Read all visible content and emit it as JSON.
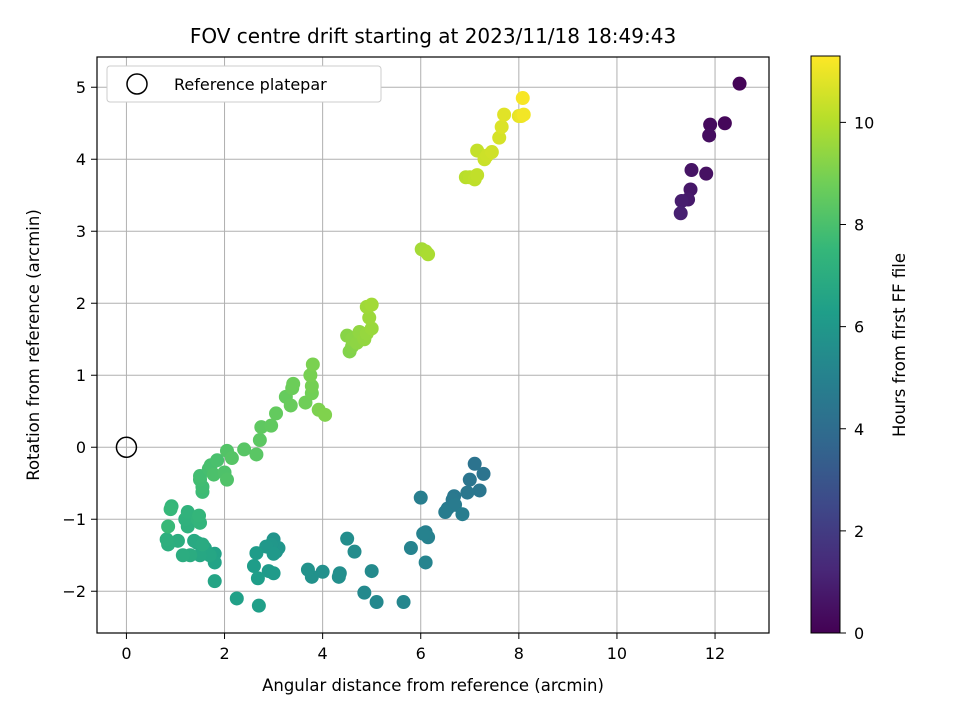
{
  "chart_data": {
    "type": "scatter",
    "title": "FOV centre drift starting at 2023/11/18 18:49:43",
    "xlabel": "Angular distance from reference (arcmin)",
    "ylabel": "Rotation from reference (arcmin)",
    "xlim": [
      -0.6,
      13.1
    ],
    "ylim": [
      -2.58,
      5.42
    ],
    "xticks": [
      0,
      2,
      4,
      6,
      8,
      10,
      12
    ],
    "yticks": [
      -2,
      -1,
      0,
      1,
      2,
      3,
      4,
      5
    ],
    "grid": true,
    "legend": {
      "placement": "upper-left",
      "entries": [
        "Reference platepar"
      ]
    },
    "reference_point": {
      "x": 0,
      "y": 0,
      "label": "Reference platepar"
    },
    "colorbar": {
      "label": "Hours from first FF file",
      "colormap": "viridis",
      "min": 0,
      "max": 11.3,
      "ticks": [
        0,
        2,
        4,
        6,
        8,
        10
      ],
      "colors": [
        "#440154",
        "#482878",
        "#3e4989",
        "#31688e",
        "#26828e",
        "#1f9e89",
        "#35b779",
        "#6ece58",
        "#b5de2b",
        "#fde725"
      ]
    },
    "points": [
      [
        12.5,
        5.05,
        0.1
      ],
      [
        12.2,
        4.5,
        0.2
      ],
      [
        11.9,
        4.48,
        0.3
      ],
      [
        11.88,
        4.33,
        0.4
      ],
      [
        11.82,
        3.8,
        0.5
      ],
      [
        11.52,
        3.85,
        0.6
      ],
      [
        11.5,
        3.58,
        0.7
      ],
      [
        11.45,
        3.44,
        0.8
      ],
      [
        11.32,
        3.42,
        0.9
      ],
      [
        11.3,
        3.25,
        1.0
      ],
      [
        7.1,
        -0.23,
        4.3
      ],
      [
        7.28,
        -0.37,
        4.35
      ],
      [
        7.0,
        -0.45,
        4.4
      ],
      [
        7.2,
        -0.6,
        4.45
      ],
      [
        6.95,
        -0.63,
        4.5
      ],
      [
        6.68,
        -0.68,
        4.55
      ],
      [
        6.65,
        -0.73,
        4.6
      ],
      [
        6.55,
        -0.85,
        4.65
      ],
      [
        6.7,
        -0.8,
        4.7
      ],
      [
        6.5,
        -0.9,
        4.75
      ],
      [
        6.85,
        -0.93,
        4.8
      ],
      [
        6.0,
        -0.7,
        4.85
      ],
      [
        6.1,
        -1.18,
        4.9
      ],
      [
        6.15,
        -1.25,
        4.95
      ],
      [
        6.05,
        -1.2,
        5.0
      ],
      [
        5.8,
        -1.4,
        5.05
      ],
      [
        6.1,
        -1.6,
        5.1
      ],
      [
        5.65,
        -2.15,
        5.2
      ],
      [
        5.1,
        -2.15,
        5.3
      ],
      [
        4.85,
        -2.02,
        5.35
      ],
      [
        5.0,
        -1.72,
        5.4
      ],
      [
        4.65,
        -1.45,
        5.45
      ],
      [
        4.5,
        -1.27,
        5.5
      ],
      [
        4.35,
        -1.75,
        5.55
      ],
      [
        4.33,
        -1.8,
        5.6
      ],
      [
        4.0,
        -1.73,
        5.65
      ],
      [
        3.78,
        -1.8,
        5.7
      ],
      [
        3.7,
        -1.7,
        5.75
      ],
      [
        3.05,
        -1.45,
        5.8
      ],
      [
        3.0,
        -1.28,
        5.85
      ],
      [
        3.1,
        -1.4,
        5.9
      ],
      [
        2.95,
        -1.35,
        5.95
      ],
      [
        2.85,
        -1.38,
        6.0
      ],
      [
        3.0,
        -1.48,
        6.05
      ],
      [
        2.9,
        -1.72,
        6.1
      ],
      [
        3.0,
        -1.75,
        6.15
      ],
      [
        2.65,
        -1.47,
        6.2
      ],
      [
        2.6,
        -1.65,
        6.25
      ],
      [
        2.68,
        -1.82,
        6.3
      ],
      [
        2.7,
        -2.2,
        6.35
      ],
      [
        2.25,
        -2.1,
        6.4
      ],
      [
        1.8,
        -1.48,
        6.5
      ],
      [
        1.8,
        -1.6,
        6.55
      ],
      [
        1.8,
        -1.86,
        6.6
      ],
      [
        1.6,
        -1.4,
        6.65
      ],
      [
        1.7,
        -1.5,
        6.7
      ],
      [
        1.5,
        -1.5,
        6.75
      ],
      [
        1.45,
        -1.33,
        6.8
      ],
      [
        1.38,
        -1.3,
        6.85
      ],
      [
        1.55,
        -1.35,
        6.9
      ],
      [
        1.3,
        -1.5,
        6.95
      ],
      [
        1.15,
        -1.5,
        7.0
      ],
      [
        1.05,
        -1.3,
        7.05
      ],
      [
        0.85,
        -1.35,
        7.1
      ],
      [
        0.82,
        -1.28,
        7.15
      ],
      [
        1.25,
        -1.1,
        7.2
      ],
      [
        1.2,
        -1.0,
        7.25
      ],
      [
        1.25,
        -0.9,
        7.3
      ],
      [
        1.45,
        -1.0,
        7.35
      ],
      [
        1.5,
        -1.05,
        7.4
      ],
      [
        1.48,
        -0.95,
        7.45
      ],
      [
        0.92,
        -0.82,
        7.5
      ],
      [
        0.9,
        -0.86,
        7.55
      ],
      [
        0.85,
        -1.1,
        7.6
      ],
      [
        1.55,
        -0.62,
        7.7
      ],
      [
        1.55,
        -0.55,
        7.75
      ],
      [
        1.5,
        -0.45,
        7.8
      ],
      [
        1.5,
        -0.4,
        7.85
      ],
      [
        1.68,
        -0.3,
        7.9
      ],
      [
        1.72,
        -0.25,
        7.95
      ],
      [
        1.85,
        -0.18,
        8.0
      ],
      [
        1.78,
        -0.38,
        8.05
      ],
      [
        2.0,
        -0.35,
        8.1
      ],
      [
        2.05,
        -0.45,
        8.15
      ],
      [
        2.05,
        -0.05,
        8.2
      ],
      [
        2.15,
        -0.15,
        8.25
      ],
      [
        2.4,
        -0.03,
        8.3
      ],
      [
        2.65,
        -0.1,
        8.35
      ],
      [
        2.72,
        0.1,
        8.4
      ],
      [
        2.75,
        0.28,
        8.45
      ],
      [
        2.95,
        0.3,
        8.5
      ],
      [
        3.05,
        0.47,
        8.55
      ],
      [
        3.25,
        0.7,
        8.6
      ],
      [
        3.35,
        0.58,
        8.65
      ],
      [
        3.38,
        0.82,
        8.7
      ],
      [
        3.4,
        0.88,
        8.75
      ],
      [
        3.65,
        0.62,
        8.8
      ],
      [
        3.78,
        0.75,
        8.85
      ],
      [
        3.78,
        0.85,
        8.9
      ],
      [
        3.75,
        1.0,
        8.95
      ],
      [
        3.8,
        1.15,
        9.0
      ],
      [
        3.92,
        0.52,
        9.05
      ],
      [
        4.05,
        0.45,
        9.1
      ],
      [
        4.55,
        1.33,
        9.15
      ],
      [
        4.6,
        1.4,
        9.2
      ],
      [
        4.5,
        1.55,
        9.25
      ],
      [
        4.6,
        1.5,
        9.3
      ],
      [
        4.7,
        1.45,
        9.35
      ],
      [
        4.75,
        1.6,
        9.4
      ],
      [
        4.85,
        1.5,
        9.45
      ],
      [
        4.9,
        1.58,
        9.5
      ],
      [
        5.0,
        1.65,
        9.55
      ],
      [
        4.95,
        1.8,
        9.6
      ],
      [
        4.9,
        1.95,
        9.65
      ],
      [
        5.0,
        1.98,
        9.7
      ],
      [
        6.02,
        2.75,
        9.75
      ],
      [
        6.1,
        2.72,
        9.8
      ],
      [
        6.15,
        2.68,
        9.85
      ],
      [
        6.92,
        3.75,
        10.1
      ],
      [
        7.0,
        3.75,
        10.15
      ],
      [
        7.1,
        3.72,
        10.2
      ],
      [
        7.15,
        3.78,
        10.25
      ],
      [
        7.15,
        4.12,
        10.3
      ],
      [
        7.3,
        4.0,
        10.4
      ],
      [
        7.35,
        4.05,
        10.45
      ],
      [
        7.45,
        4.1,
        10.5
      ],
      [
        7.6,
        4.3,
        10.6
      ],
      [
        7.65,
        4.45,
        10.7
      ],
      [
        7.7,
        4.62,
        10.8
      ],
      [
        8.0,
        4.6,
        10.9
      ],
      [
        8.05,
        4.6,
        11.0
      ],
      [
        8.1,
        4.62,
        11.1
      ],
      [
        8.08,
        4.85,
        11.2
      ]
    ]
  }
}
